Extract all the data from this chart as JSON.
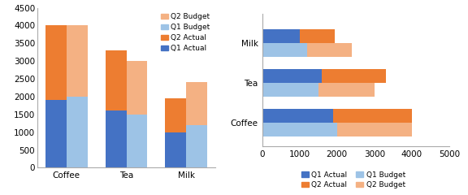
{
  "categories": [
    "Coffee",
    "Tea",
    "Milk"
  ],
  "q1_actual": [
    1900,
    1600,
    1000
  ],
  "q2_actual": [
    2100,
    1700,
    950
  ],
  "q1_budget": [
    2000,
    1500,
    1200
  ],
  "q2_budget": [
    2000,
    1500,
    1200
  ],
  "color_q1_actual": "#4472C4",
  "color_q2_actual": "#ED7D31",
  "color_q1_budget": "#9DC3E6",
  "color_q2_budget": "#F4B183",
  "left_ylim": [
    0,
    4500
  ],
  "left_yticks": [
    0,
    500,
    1000,
    1500,
    2000,
    2500,
    3000,
    3500,
    4000,
    4500
  ],
  "right_xlim": [
    0,
    5000
  ],
  "right_xticks": [
    0,
    1000,
    2000,
    3000,
    4000,
    5000
  ]
}
